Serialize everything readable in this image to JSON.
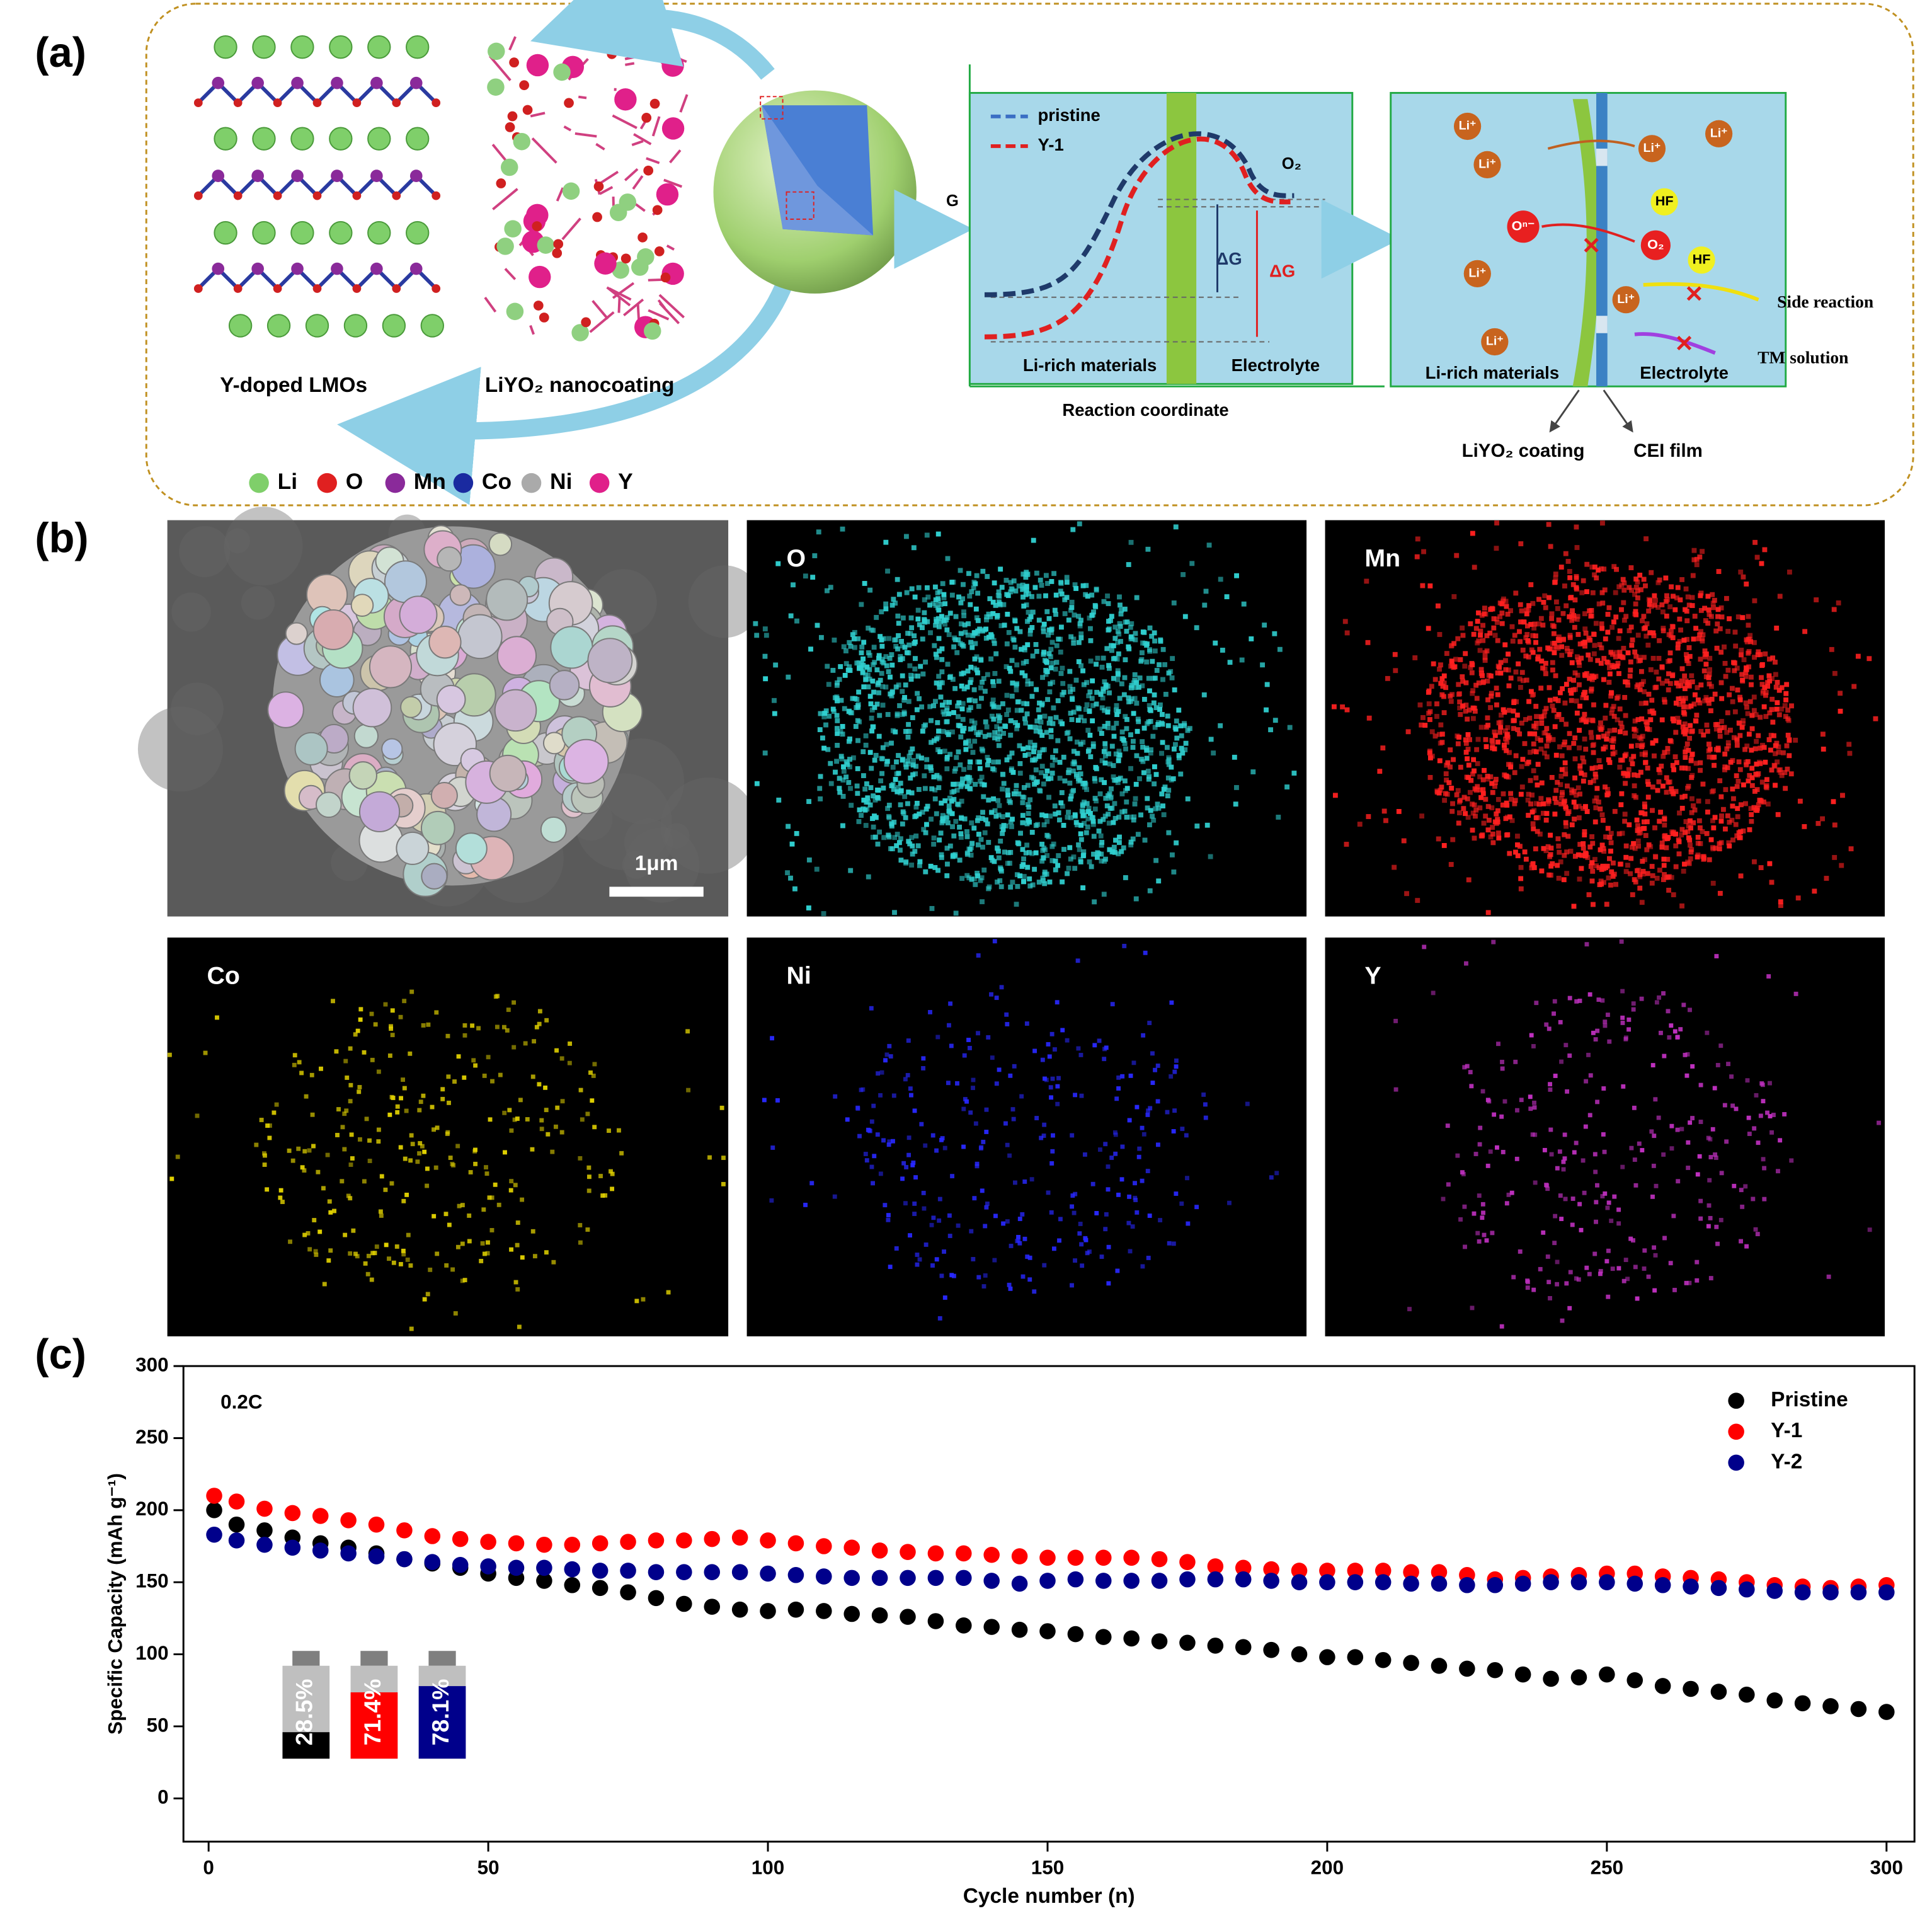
{
  "panel_labels": [
    "(a)",
    "(b)",
    "(c)"
  ],
  "schematic": {
    "structure_labels": [
      "Y-doped LMOs",
      "LiYO₂ nanocoating"
    ],
    "elements": [
      "Li",
      "O",
      "Mn",
      "Co",
      "Ni",
      "Y"
    ],
    "energy_axis": "G",
    "curves": [
      "pristine",
      "Y-1"
    ],
    "product": "O₂",
    "delta": [
      "ΔG",
      "ΔG"
    ],
    "left_box": [
      "Li-rich materials",
      "Electrolyte"
    ],
    "x_axis": "Reaction coordinate",
    "ions": [
      "Li⁺",
      "Li⁺",
      "Li⁺",
      "Li⁺",
      "Li⁺",
      "Li⁺",
      "Li⁺"
    ],
    "oxygen_ion": "Oⁿ⁻",
    "oxygen_gas": "O₂",
    "acid": [
      "HF",
      "HF"
    ],
    "reactions": [
      "Side reaction",
      "TM solution"
    ],
    "right_box": [
      "Li-rich materials",
      "Electrolyte"
    ],
    "layers": [
      "LiYO₂ coating",
      "CEI film"
    ]
  },
  "maps": {
    "scale_bar": "1μm",
    "elements": [
      "O",
      "Mn",
      "Co",
      "Ni",
      "Y"
    ]
  },
  "chart_data": {
    "type": "scatter",
    "annotation": "0.2C",
    "x_label": "Cycle number (n)",
    "y_label": "Specific Capacity (mAh g⁻¹)",
    "xlim": [
      -4.5,
      305
    ],
    "ylim": [
      -30,
      300
    ],
    "xticks": [
      0,
      50,
      100,
      150,
      200,
      250,
      300
    ],
    "yticks": [
      0,
      50,
      100,
      150,
      200,
      250,
      300
    ],
    "legend": "upper right",
    "x": [
      1,
      5,
      10,
      15,
      20,
      25,
      30,
      35,
      40,
      45,
      50,
      55,
      60,
      65,
      70,
      75,
      80,
      85,
      90,
      95,
      100,
      105,
      110,
      115,
      120,
      125,
      130,
      135,
      140,
      145,
      150,
      155,
      160,
      165,
      170,
      175,
      180,
      185,
      190,
      195,
      200,
      205,
      210,
      215,
      220,
      225,
      230,
      235,
      240,
      245,
      250,
      255,
      260,
      265,
      270,
      275,
      280,
      285,
      290,
      295,
      300
    ],
    "series": [
      {
        "name": "Pristine",
        "color": "#000000",
        "values": [
          200,
          190,
          186,
          181,
          177,
          174,
          170,
          166,
          163,
          160,
          156,
          153,
          151,
          148,
          146,
          143,
          139,
          135,
          133,
          131,
          130,
          131,
          130,
          128,
          127,
          126,
          123,
          120,
          119,
          117,
          116,
          114,
          112,
          111,
          109,
          108,
          106,
          105,
          103,
          100,
          98,
          98,
          96,
          94,
          92,
          90,
          89,
          86,
          83,
          84,
          86,
          82,
          78,
          76,
          74,
          72,
          68,
          66,
          64,
          62,
          60
        ]
      },
      {
        "name": "Y-1",
        "color": "#ff0000",
        "values": [
          210,
          206,
          201,
          198,
          196,
          193,
          190,
          186,
          182,
          180,
          178,
          177,
          176,
          176,
          177,
          178,
          179,
          179,
          180,
          181,
          179,
          177,
          175,
          174,
          172,
          171,
          170,
          170,
          169,
          168,
          167,
          167,
          167,
          167,
          166,
          164,
          161,
          160,
          159,
          158,
          158,
          158,
          158,
          157,
          157,
          155,
          152,
          153,
          154,
          155,
          156,
          156,
          154,
          153,
          152,
          150,
          148,
          147,
          146,
          147,
          148
        ]
      },
      {
        "name": "Y-2",
        "color": "#00008b",
        "values": [
          183,
          179,
          176,
          174,
          172,
          170,
          168,
          166,
          164,
          162,
          161,
          160,
          160,
          159,
          158,
          158,
          157,
          157,
          157,
          157,
          156,
          155,
          154,
          153,
          153,
          153,
          153,
          153,
          151,
          149,
          151,
          152,
          151,
          151,
          151,
          152,
          152,
          152,
          151,
          150,
          150,
          150,
          150,
          149,
          149,
          148,
          148,
          149,
          150,
          150,
          150,
          149,
          148,
          147,
          146,
          145,
          144,
          143,
          143,
          143,
          143
        ]
      }
    ],
    "inset": {
      "values": [
        28.5,
        71.4,
        78.1
      ],
      "value_labels": [
        "28.5%",
        "71.4%",
        "78.1%"
      ],
      "colors": [
        "#000000",
        "#ff0000",
        "#00008b"
      ]
    }
  }
}
